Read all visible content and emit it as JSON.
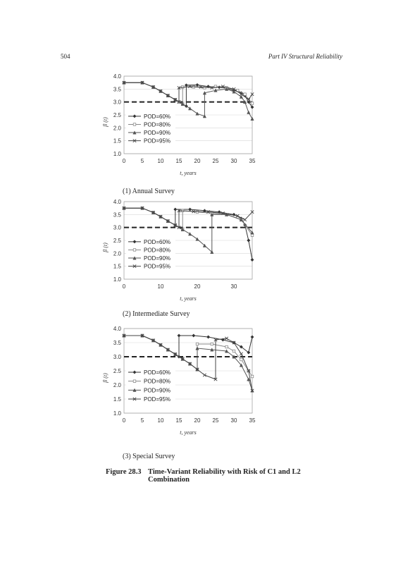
{
  "header": {
    "page_number": "504",
    "running_title": "Part IV Structural Reliability"
  },
  "figure": {
    "number": "Figure 28.3",
    "caption": "Time-Variant Reliability with Risk of C1 and L2 Combination"
  },
  "chart_data": [
    {
      "type": "line",
      "subcaption": "(1) Annual Survey",
      "xlabel": "t, years",
      "ylabel": "β (t)",
      "xlim": [
        0,
        35
      ],
      "ylim": [
        1.0,
        4.0
      ],
      "xticks": [
        "0",
        "5",
        "10",
        "15",
        "20",
        "25",
        "30",
        "35"
      ],
      "yticks": [
        "1.0",
        "1.5",
        "2.0",
        "2.5",
        "3.0",
        "3.5",
        "4.0"
      ],
      "target_line": 3.0,
      "legend": [
        "POD=60%",
        "POD=80%",
        "POD=90%",
        "POD=95%"
      ],
      "series": [
        {
          "name": "POD=60%",
          "marker": "diamond",
          "x": [
            0,
            5,
            8,
            10,
            12,
            14,
            16,
            17,
            17,
            20,
            23,
            26,
            28,
            30,
            32,
            33,
            34,
            35
          ],
          "values": [
            3.75,
            3.75,
            3.58,
            3.42,
            3.25,
            3.09,
            2.92,
            2.84,
            3.65,
            3.66,
            3.6,
            3.57,
            3.53,
            3.45,
            3.35,
            3.25,
            3.0,
            2.8
          ]
        },
        {
          "name": "POD=80%",
          "marker": "square",
          "x": [
            0,
            5,
            8,
            10,
            12,
            14,
            15,
            16,
            16,
            19,
            22,
            25,
            28,
            31,
            33,
            34,
            35
          ],
          "values": [
            3.75,
            3.75,
            3.58,
            3.42,
            3.25,
            3.09,
            3.0,
            2.92,
            3.58,
            3.58,
            3.55,
            3.6,
            3.55,
            3.45,
            3.3,
            3.1,
            2.95
          ]
        },
        {
          "name": "POD=90%",
          "marker": "triangle",
          "x": [
            0,
            5,
            8,
            10,
            12,
            14,
            16,
            18,
            20,
            22,
            22,
            25,
            28,
            30,
            32,
            33,
            34,
            35
          ],
          "values": [
            3.75,
            3.75,
            3.58,
            3.42,
            3.25,
            3.09,
            2.92,
            2.75,
            2.55,
            2.45,
            3.35,
            3.45,
            3.5,
            3.4,
            3.2,
            3.0,
            2.6,
            2.35
          ]
        },
        {
          "name": "POD=95%",
          "marker": "x",
          "x": [
            0,
            5,
            8,
            10,
            12,
            14,
            15,
            15,
            18,
            21,
            24,
            27,
            30,
            32,
            34,
            35
          ],
          "values": [
            3.75,
            3.75,
            3.58,
            3.42,
            3.25,
            3.09,
            3.0,
            3.55,
            3.6,
            3.58,
            3.55,
            3.6,
            3.5,
            3.3,
            3.1,
            3.3
          ]
        }
      ]
    },
    {
      "type": "line",
      "subcaption": "(2) Intermediate Survey",
      "xlabel": "t, years",
      "ylabel": "β (t)",
      "xlim": [
        0,
        35
      ],
      "ylim": [
        1.0,
        4.0
      ],
      "xticks": [
        "0",
        "10",
        "20",
        "30"
      ],
      "xtick_values": [
        0,
        10,
        20,
        30
      ],
      "yticks": [
        "1.0",
        "1.5",
        "2.0",
        "2.5",
        "3.0",
        "3.5",
        "4.0"
      ],
      "target_line": 3.0,
      "legend": [
        "POD=60%",
        "POD=80%",
        "POD=90%",
        "POD=95%"
      ],
      "series": [
        {
          "name": "POD=60%",
          "marker": "diamond",
          "x": [
            0,
            5,
            8,
            10,
            12,
            14,
            14,
            18,
            22,
            26,
            30,
            32,
            33,
            34,
            35
          ],
          "values": [
            3.75,
            3.75,
            3.58,
            3.42,
            3.25,
            3.09,
            3.7,
            3.7,
            3.65,
            3.6,
            3.5,
            3.35,
            3.1,
            2.5,
            1.75
          ]
        },
        {
          "name": "POD=80%",
          "marker": "square",
          "x": [
            0,
            5,
            8,
            10,
            12,
            14,
            16,
            16,
            20,
            24,
            28,
            32,
            35
          ],
          "values": [
            3.75,
            3.75,
            3.58,
            3.42,
            3.25,
            3.09,
            2.92,
            3.65,
            3.6,
            3.55,
            3.5,
            3.3,
            2.7
          ]
        },
        {
          "name": "POD=90%",
          "marker": "triangle",
          "x": [
            0,
            5,
            8,
            10,
            12,
            14,
            16,
            18,
            20,
            22,
            24,
            24,
            28,
            32,
            35
          ],
          "values": [
            3.75,
            3.75,
            3.58,
            3.42,
            3.25,
            3.09,
            2.92,
            2.75,
            2.55,
            2.3,
            2.05,
            3.5,
            3.5,
            3.3,
            2.8
          ]
        },
        {
          "name": "POD=95%",
          "marker": "x",
          "x": [
            0,
            5,
            8,
            10,
            12,
            14,
            15,
            15,
            19,
            23,
            27,
            31,
            33,
            35
          ],
          "values": [
            3.75,
            3.75,
            3.58,
            3.42,
            3.25,
            3.09,
            3.0,
            3.65,
            3.62,
            3.6,
            3.55,
            3.45,
            3.3,
            3.6
          ]
        }
      ]
    },
    {
      "type": "line",
      "subcaption": "(3) Special Survey",
      "xlabel": "t, years",
      "ylabel": "β (t)",
      "xlim": [
        0,
        35
      ],
      "ylim": [
        1.0,
        4.0
      ],
      "xticks": [
        "0",
        "5",
        "10",
        "15",
        "20",
        "25",
        "30",
        "35"
      ],
      "yticks": [
        "1.0",
        "1.5",
        "2.0",
        "2.5",
        "3.0",
        "3.5",
        "4.0"
      ],
      "target_line": 3.0,
      "legend": [
        "POD=60%",
        "POD=80%",
        "POD=90%",
        "POD=95%"
      ],
      "series": [
        {
          "name": "POD=60%",
          "marker": "diamond",
          "x": [
            0,
            5,
            8,
            10,
            12,
            14,
            15,
            15,
            19,
            23,
            27,
            30,
            32,
            34,
            35
          ],
          "values": [
            3.75,
            3.75,
            3.58,
            3.42,
            3.25,
            3.09,
            3.0,
            3.75,
            3.75,
            3.7,
            3.6,
            3.5,
            3.35,
            3.15,
            3.7
          ]
        },
        {
          "name": "POD=80%",
          "marker": "square",
          "x": [
            0,
            5,
            8,
            10,
            12,
            14,
            16,
            18,
            20,
            20,
            24,
            28,
            30,
            32,
            34,
            35
          ],
          "values": [
            3.75,
            3.75,
            3.58,
            3.42,
            3.25,
            3.09,
            2.92,
            2.75,
            2.55,
            3.45,
            3.45,
            3.35,
            3.2,
            2.9,
            2.5,
            2.3
          ]
        },
        {
          "name": "POD=90%",
          "marker": "triangle",
          "x": [
            0,
            5,
            8,
            10,
            12,
            14,
            16,
            18,
            20,
            20,
            24,
            28,
            30,
            32,
            34,
            35
          ],
          "values": [
            3.75,
            3.75,
            3.58,
            3.42,
            3.25,
            3.09,
            2.92,
            2.75,
            2.55,
            3.3,
            3.25,
            3.2,
            3.0,
            2.7,
            2.2,
            1.8
          ]
        },
        {
          "name": "POD=95%",
          "marker": "x",
          "x": [
            0,
            5,
            8,
            10,
            12,
            14,
            16,
            18,
            20,
            22,
            25,
            25,
            28,
            30,
            32,
            34,
            35
          ],
          "values": [
            3.75,
            3.75,
            3.58,
            3.42,
            3.25,
            3.09,
            2.92,
            2.75,
            2.55,
            2.35,
            2.2,
            3.6,
            3.65,
            3.5,
            3.1,
            2.5,
            1.8
          ]
        }
      ]
    }
  ]
}
